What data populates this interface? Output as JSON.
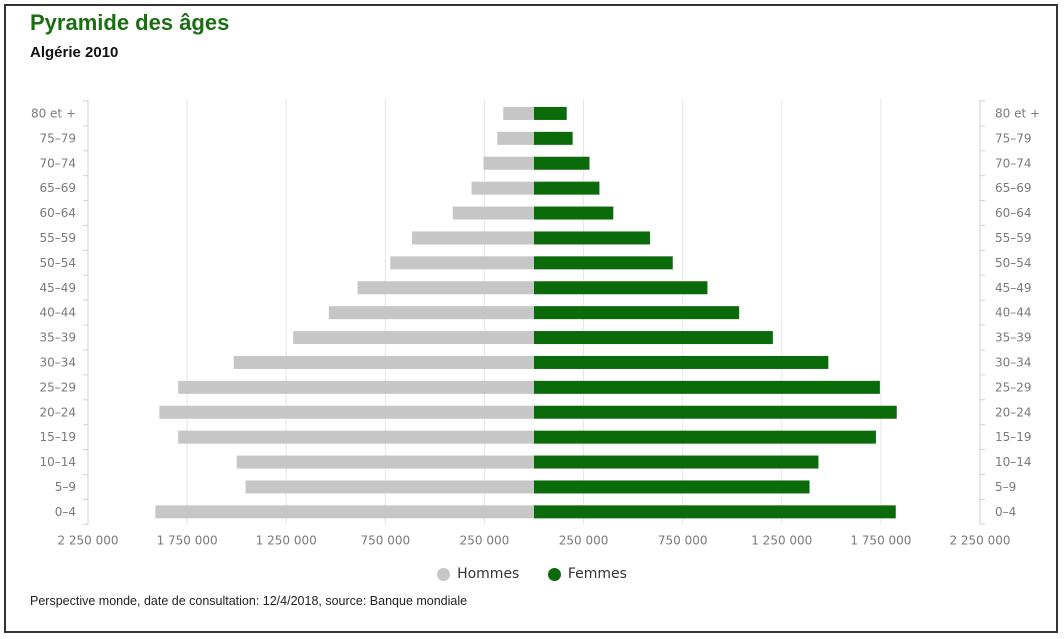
{
  "title": "Pyramide des âges",
  "subtitle": "Algérie 2010",
  "source_note": "Perspective monde, date de consultation: 12/4/2018, source: Banque mondiale",
  "colors": {
    "hommes": "#c6c6c6",
    "femmes": "#0b6b0b",
    "title": "#1b6e12"
  },
  "chart_data": {
    "type": "bar",
    "orientation": "horizontal-diverging",
    "categories": [
      "0–4",
      "5–9",
      "10–14",
      "15–19",
      "20–24",
      "25–29",
      "30–34",
      "35–39",
      "40–44",
      "45–49",
      "50–54",
      "55–59",
      "60–64",
      "65–69",
      "70–74",
      "75–79",
      "80 et +"
    ],
    "series": [
      {
        "name": "Hommes",
        "color": "#c6c6c6",
        "side": "left",
        "values": [
          1910000,
          1455000,
          1500000,
          1795000,
          1890000,
          1795000,
          1515000,
          1215000,
          1035000,
          890000,
          725000,
          615000,
          410000,
          315000,
          255000,
          185000,
          155000
        ]
      },
      {
        "name": "Femmes",
        "color": "#0b6b0b",
        "side": "right",
        "values": [
          1825000,
          1390000,
          1435000,
          1725000,
          1830000,
          1745000,
          1485000,
          1205000,
          1035000,
          875000,
          700000,
          585000,
          400000,
          330000,
          280000,
          195000,
          165000
        ]
      }
    ],
    "xlim": [
      -2250000,
      2250000
    ],
    "x_ticks": [
      -2250000,
      -1750000,
      -1250000,
      -750000,
      -250000,
      250000,
      750000,
      1250000,
      1750000,
      2250000
    ],
    "x_tick_labels": [
      "2 250 000",
      "1 750 000",
      "1 250 000",
      "750 000",
      "250 000",
      "250 000",
      "750 000",
      "1 250 000",
      "1 750 000",
      "2 250 000"
    ],
    "grid": true,
    "legend": {
      "position": "bottom-center",
      "entries": [
        "Hommes",
        "Femmes"
      ]
    }
  }
}
